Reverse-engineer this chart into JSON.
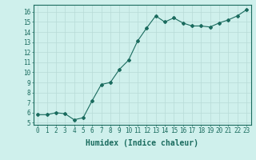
{
  "x": [
    0,
    1,
    2,
    3,
    4,
    5,
    6,
    7,
    8,
    9,
    10,
    11,
    12,
    13,
    14,
    15,
    16,
    17,
    18,
    19,
    20,
    21,
    22,
    23
  ],
  "y": [
    5.8,
    5.8,
    6.0,
    5.9,
    5.3,
    5.5,
    7.2,
    8.8,
    9.0,
    10.3,
    11.2,
    13.1,
    14.4,
    15.6,
    15.0,
    15.4,
    14.9,
    14.6,
    14.6,
    14.5,
    14.9,
    15.2,
    15.6,
    16.2
  ],
  "line_color": "#1a6b5e",
  "marker": "D",
  "marker_size": 2,
  "bg_color": "#cff0ec",
  "grid_color": "#b8dbd7",
  "xlabel": "Humidex (Indice chaleur)",
  "xlim": [
    -0.5,
    23.5
  ],
  "ylim": [
    4.8,
    16.7
  ],
  "yticks": [
    5,
    6,
    7,
    8,
    9,
    10,
    11,
    12,
    13,
    14,
    15,
    16
  ],
  "xticks": [
    0,
    1,
    2,
    3,
    4,
    5,
    6,
    7,
    8,
    9,
    10,
    11,
    12,
    13,
    14,
    15,
    16,
    17,
    18,
    19,
    20,
    21,
    22,
    23
  ],
  "tick_color": "#1a6b5e",
  "label_color": "#1a6b5e",
  "xlabel_fontsize": 7,
  "tick_fontsize": 5.5
}
